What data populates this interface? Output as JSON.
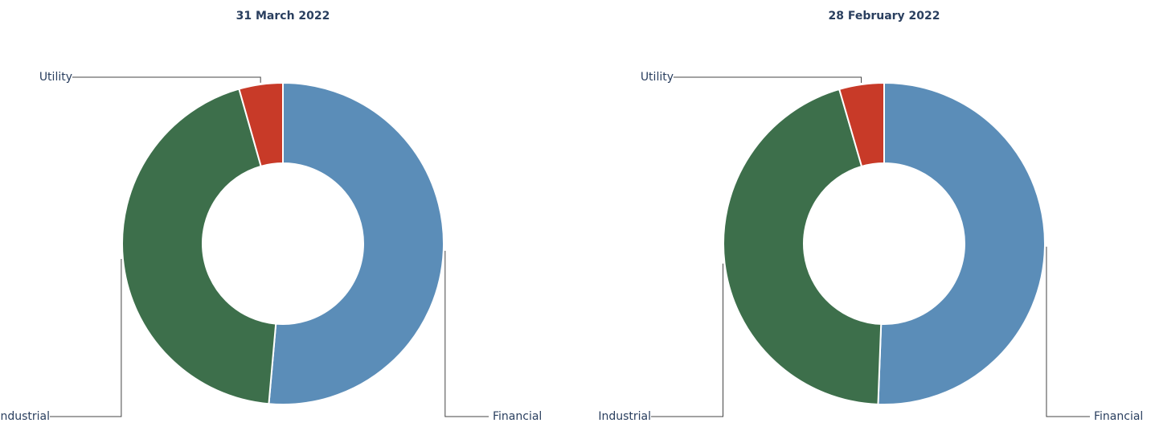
{
  "chart_data": [
    {
      "type": "pie",
      "title": "31 March 2022",
      "categories": [
        "Financial",
        "Industrial",
        "Utility"
      ],
      "values": [
        51.4,
        44.2,
        4.4
      ],
      "colors": [
        "#5b8db8",
        "#3d6f4b",
        "#c83a28"
      ]
    },
    {
      "type": "pie",
      "title": "28 February 2022",
      "categories": [
        "Financial",
        "Industrial",
        "Utility"
      ],
      "values": [
        50.6,
        44.9,
        4.5
      ],
      "colors": [
        "#5b8db8",
        "#3d6f4b",
        "#c83a28"
      ]
    }
  ]
}
